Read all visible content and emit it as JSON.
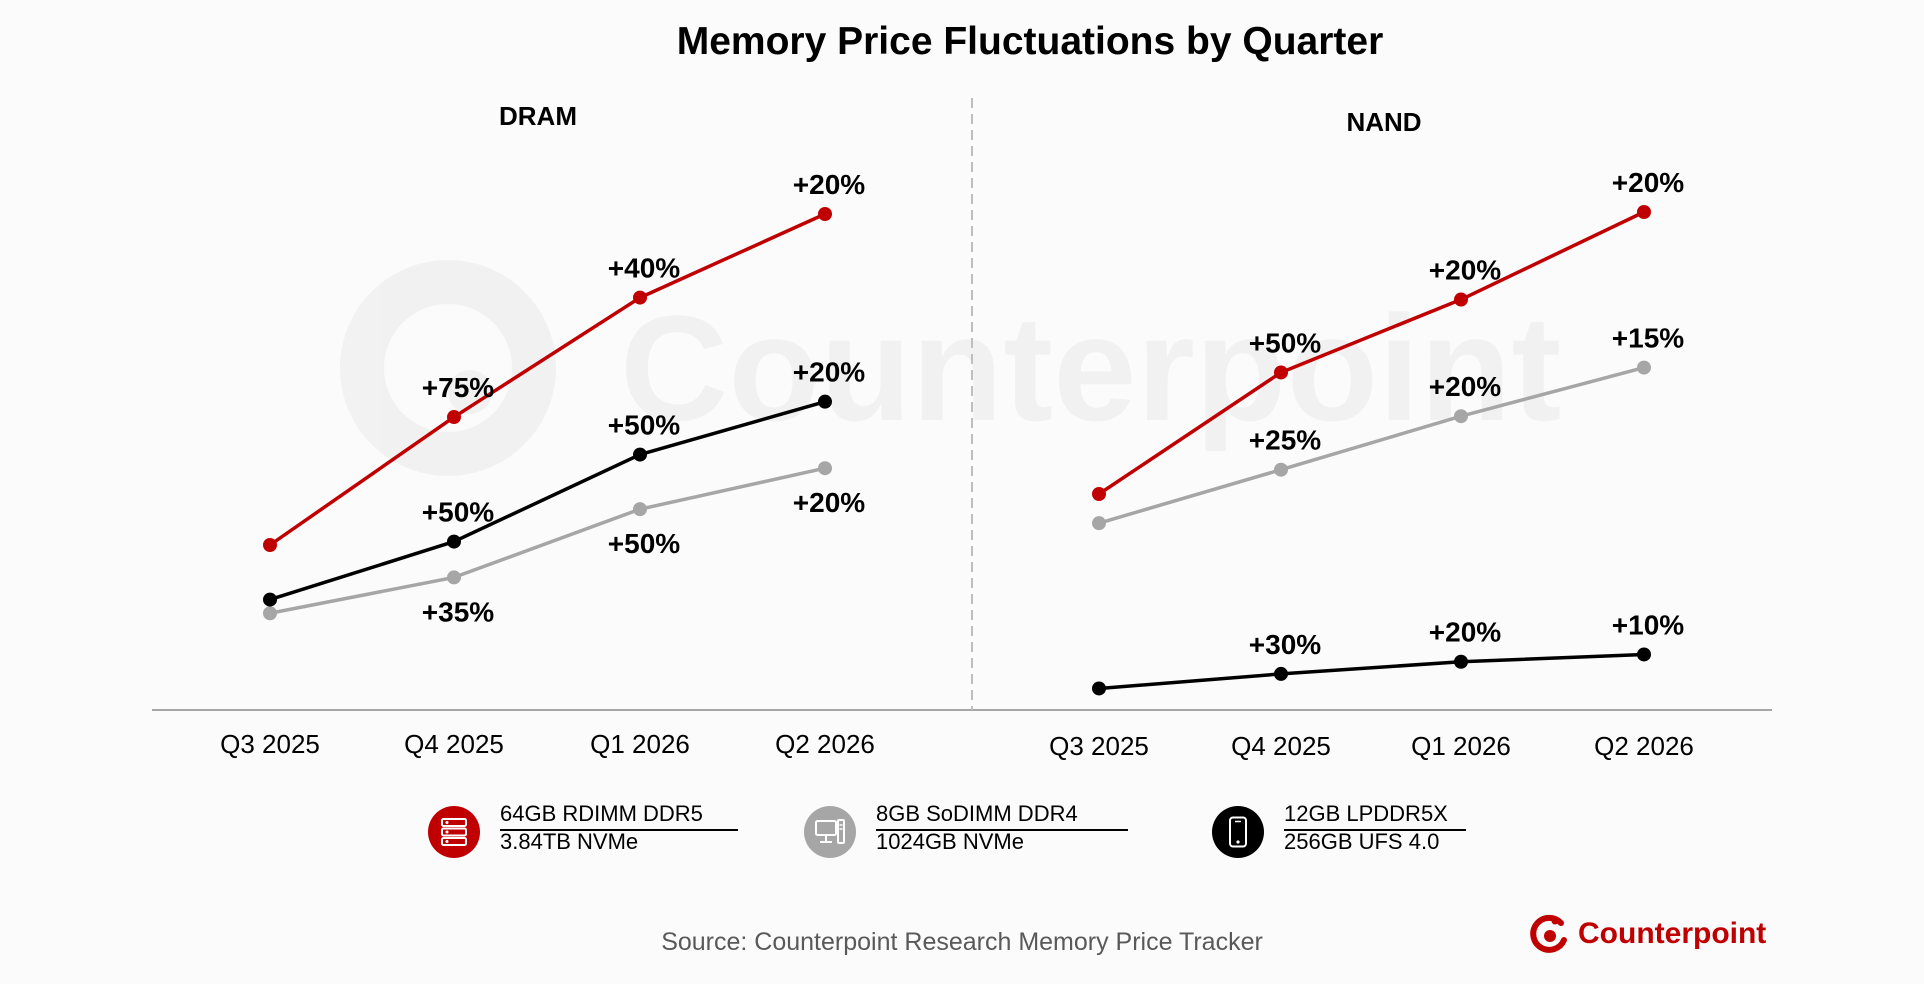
{
  "title": "Memory Price Fluctuations by Quarter",
  "colors": {
    "red": "#c00000",
    "black": "#000000",
    "gray": "#a6a6a6",
    "axis": "#a6a6a6",
    "brand": "#c00000"
  },
  "watermark": "Counterpoint",
  "chart_data": [
    {
      "type": "line",
      "title": "DRAM",
      "categories": [
        "Q3 2025",
        "Q4 2025",
        "Q1 2026",
        "Q2 2026"
      ],
      "series": [
        {
          "name": "64GB RDIMM DDR5",
          "color": "red",
          "values": [
            100,
            175,
            245,
            294
          ],
          "labels": [
            "",
            "+75%",
            "+40%",
            "+20%"
          ],
          "label_pos": [
            "",
            "above",
            "above",
            "above"
          ]
        },
        {
          "name": "8GB SoDIMM DDR4",
          "color": "gray",
          "values": [
            60,
            81,
            121,
            145
          ],
          "labels": [
            "",
            "+35%",
            "+50%",
            "+20%"
          ],
          "label_pos": [
            "",
            "below",
            "below",
            "below"
          ]
        },
        {
          "name": "12GB LPDDR5X",
          "color": "black",
          "values": [
            68,
            102,
            153,
            184
          ],
          "labels": [
            "",
            "+50%",
            "+50%",
            "+20%"
          ],
          "label_pos": [
            "",
            "above",
            "above",
            "above"
          ]
        }
      ]
    },
    {
      "type": "line",
      "title": "NAND",
      "categories": [
        "Q3 2025",
        "Q4 2025",
        "Q1 2026",
        "Q2 2026"
      ],
      "series": [
        {
          "name": "3.84TB NVMe",
          "color": "red",
          "values": [
            100,
            150,
            180,
            216
          ],
          "labels": [
            "",
            "+50%",
            "+20%",
            "+20%"
          ],
          "label_pos": [
            "",
            "above",
            "above",
            "above"
          ]
        },
        {
          "name": "1024GB NVMe",
          "color": "gray",
          "values": [
            88,
            110,
            132,
            152
          ],
          "labels": [
            "",
            "+25%",
            "+20%",
            "+15%"
          ],
          "label_pos": [
            "",
            "above",
            "above",
            "above"
          ]
        },
        {
          "name": "256GB UFS 4.0",
          "color": "black",
          "values": [
            20,
            26,
            31,
            34
          ],
          "labels": [
            "",
            "+30%",
            "+20%",
            "+10%"
          ],
          "label_pos": [
            "",
            "above",
            "above",
            "above"
          ]
        }
      ]
    }
  ],
  "legend": [
    {
      "color": "red",
      "icon": "server-icon",
      "line1": "64GB RDIMM DDR5",
      "line2": "3.84TB NVMe"
    },
    {
      "color": "gray",
      "icon": "desktop-icon",
      "line1": "8GB SoDIMM DDR4",
      "line2": "1024GB NVMe"
    },
    {
      "color": "black",
      "icon": "smartphone-icon",
      "line1": "12GB LPDDR5X",
      "line2": "256GB UFS 4.0"
    }
  ],
  "source": "Source: Counterpoint Research Memory Price Tracker",
  "brand": {
    "name": "Counterpoint",
    "icon": "counterpoint-logo-icon"
  }
}
